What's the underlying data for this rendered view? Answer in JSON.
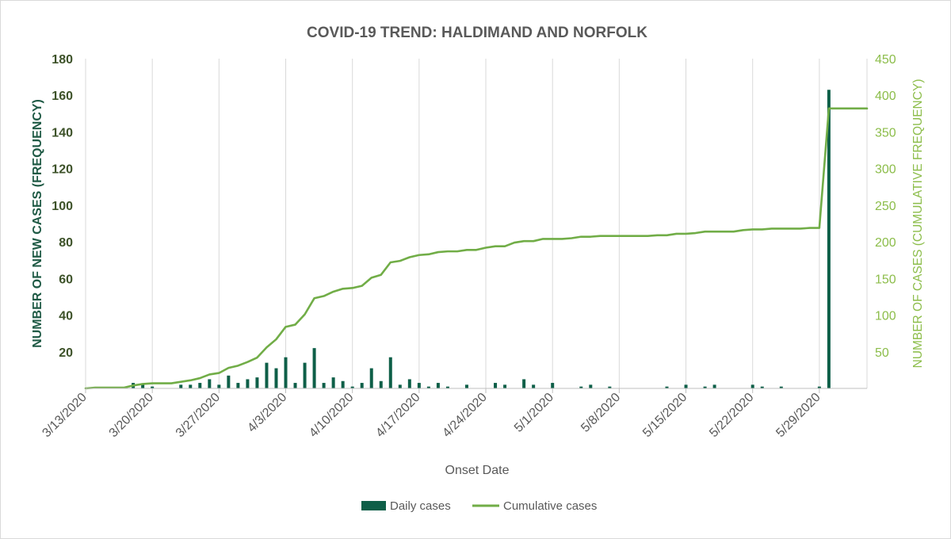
{
  "chart_data": {
    "type": "bar+line",
    "title": "COVID-19 TREND: HALDIMAND AND NORFOLK",
    "xlabel": "Onset Date",
    "ylabel_left": "NUMBER OF NEW CASES (FREQUENCY)",
    "ylabel_right": "NUMBER OF CASES (CUMULATIVE FREQUENCY)",
    "x_start_date": "2020-03-13",
    "x_end_date": "2020-06-03",
    "x_tick_labels": [
      "3/13/2020",
      "3/20/2020",
      "3/27/2020",
      "4/3/2020",
      "4/10/2020",
      "4/17/2020",
      "4/24/2020",
      "5/1/2020",
      "5/8/2020",
      "5/15/2020",
      "5/22/2020",
      "5/29/2020"
    ],
    "x_tick_dates": [
      "2020-03-13",
      "2020-03-20",
      "2020-03-27",
      "2020-04-03",
      "2020-04-10",
      "2020-04-17",
      "2020-04-24",
      "2020-05-01",
      "2020-05-08",
      "2020-05-15",
      "2020-05-22",
      "2020-05-29"
    ],
    "ylim_left": [
      0,
      180
    ],
    "yticks_left": [
      20,
      40,
      60,
      80,
      100,
      120,
      140,
      160,
      180
    ],
    "ylim_right": [
      0,
      450
    ],
    "yticks_right": [
      50,
      100,
      150,
      200,
      250,
      300,
      350,
      400,
      450
    ],
    "grid": "vertical at date ticks",
    "legend_position": "bottom",
    "colors": {
      "daily": "#0e5f48",
      "cumulative": "#71ad47"
    },
    "series": [
      {
        "name": "Daily cases",
        "axis": "left",
        "type": "bar",
        "points": [
          {
            "date": "2020-03-18",
            "value": 3
          },
          {
            "date": "2020-03-19",
            "value": 2
          },
          {
            "date": "2020-03-20",
            "value": 1
          },
          {
            "date": "2020-03-23",
            "value": 2
          },
          {
            "date": "2020-03-24",
            "value": 2
          },
          {
            "date": "2020-03-25",
            "value": 3
          },
          {
            "date": "2020-03-26",
            "value": 5
          },
          {
            "date": "2020-03-27",
            "value": 2
          },
          {
            "date": "2020-03-28",
            "value": 7
          },
          {
            "date": "2020-03-29",
            "value": 3
          },
          {
            "date": "2020-03-30",
            "value": 5
          },
          {
            "date": "2020-03-31",
            "value": 6
          },
          {
            "date": "2020-04-01",
            "value": 14
          },
          {
            "date": "2020-04-02",
            "value": 11
          },
          {
            "date": "2020-04-03",
            "value": 17
          },
          {
            "date": "2020-04-04",
            "value": 3
          },
          {
            "date": "2020-04-05",
            "value": 14
          },
          {
            "date": "2020-04-06",
            "value": 22
          },
          {
            "date": "2020-04-07",
            "value": 3
          },
          {
            "date": "2020-04-08",
            "value": 6
          },
          {
            "date": "2020-04-09",
            "value": 4
          },
          {
            "date": "2020-04-10",
            "value": 1
          },
          {
            "date": "2020-04-11",
            "value": 3
          },
          {
            "date": "2020-04-12",
            "value": 11
          },
          {
            "date": "2020-04-13",
            "value": 4
          },
          {
            "date": "2020-04-14",
            "value": 17
          },
          {
            "date": "2020-04-15",
            "value": 2
          },
          {
            "date": "2020-04-16",
            "value": 5
          },
          {
            "date": "2020-04-17",
            "value": 3
          },
          {
            "date": "2020-04-18",
            "value": 1
          },
          {
            "date": "2020-04-19",
            "value": 3
          },
          {
            "date": "2020-04-20",
            "value": 1
          },
          {
            "date": "2020-04-22",
            "value": 2
          },
          {
            "date": "2020-04-25",
            "value": 3
          },
          {
            "date": "2020-04-26",
            "value": 2
          },
          {
            "date": "2020-04-28",
            "value": 5
          },
          {
            "date": "2020-04-29",
            "value": 2
          },
          {
            "date": "2020-05-01",
            "value": 3
          },
          {
            "date": "2020-05-04",
            "value": 1
          },
          {
            "date": "2020-05-05",
            "value": 2
          },
          {
            "date": "2020-05-07",
            "value": 1
          },
          {
            "date": "2020-05-13",
            "value": 1
          },
          {
            "date": "2020-05-15",
            "value": 2
          },
          {
            "date": "2020-05-17",
            "value": 1
          },
          {
            "date": "2020-05-18",
            "value": 2
          },
          {
            "date": "2020-05-22",
            "value": 2
          },
          {
            "date": "2020-05-23",
            "value": 1
          },
          {
            "date": "2020-05-25",
            "value": 1
          },
          {
            "date": "2020-05-29",
            "value": 1
          },
          {
            "date": "2020-05-30",
            "value": 163
          }
        ]
      },
      {
        "name": "Cumulative cases",
        "axis": "right",
        "type": "line",
        "points": [
          {
            "date": "2020-03-13",
            "value": 0
          },
          {
            "date": "2020-03-14",
            "value": 1
          },
          {
            "date": "2020-03-15",
            "value": 1
          },
          {
            "date": "2020-03-16",
            "value": 1
          },
          {
            "date": "2020-03-17",
            "value": 1
          },
          {
            "date": "2020-03-18",
            "value": 4
          },
          {
            "date": "2020-03-19",
            "value": 6
          },
          {
            "date": "2020-03-20",
            "value": 7
          },
          {
            "date": "2020-03-21",
            "value": 7
          },
          {
            "date": "2020-03-22",
            "value": 7
          },
          {
            "date": "2020-03-23",
            "value": 9
          },
          {
            "date": "2020-03-24",
            "value": 11
          },
          {
            "date": "2020-03-25",
            "value": 14
          },
          {
            "date": "2020-03-26",
            "value": 19
          },
          {
            "date": "2020-03-27",
            "value": 21
          },
          {
            "date": "2020-03-28",
            "value": 28
          },
          {
            "date": "2020-03-29",
            "value": 31
          },
          {
            "date": "2020-03-30",
            "value": 36
          },
          {
            "date": "2020-03-31",
            "value": 42
          },
          {
            "date": "2020-04-01",
            "value": 56
          },
          {
            "date": "2020-04-02",
            "value": 67
          },
          {
            "date": "2020-04-03",
            "value": 84
          },
          {
            "date": "2020-04-04",
            "value": 87
          },
          {
            "date": "2020-04-05",
            "value": 101
          },
          {
            "date": "2020-04-06",
            "value": 123
          },
          {
            "date": "2020-04-07",
            "value": 126
          },
          {
            "date": "2020-04-08",
            "value": 132
          },
          {
            "date": "2020-04-09",
            "value": 136
          },
          {
            "date": "2020-04-10",
            "value": 137
          },
          {
            "date": "2020-04-11",
            "value": 140
          },
          {
            "date": "2020-04-12",
            "value": 151
          },
          {
            "date": "2020-04-13",
            "value": 155
          },
          {
            "date": "2020-04-14",
            "value": 172
          },
          {
            "date": "2020-04-15",
            "value": 174
          },
          {
            "date": "2020-04-16",
            "value": 179
          },
          {
            "date": "2020-04-17",
            "value": 182
          },
          {
            "date": "2020-04-18",
            "value": 183
          },
          {
            "date": "2020-04-19",
            "value": 186
          },
          {
            "date": "2020-04-20",
            "value": 187
          },
          {
            "date": "2020-04-21",
            "value": 187
          },
          {
            "date": "2020-04-22",
            "value": 189
          },
          {
            "date": "2020-04-23",
            "value": 189
          },
          {
            "date": "2020-04-24",
            "value": 192
          },
          {
            "date": "2020-04-25",
            "value": 194
          },
          {
            "date": "2020-04-26",
            "value": 194
          },
          {
            "date": "2020-04-27",
            "value": 199
          },
          {
            "date": "2020-04-28",
            "value": 201
          },
          {
            "date": "2020-04-29",
            "value": 201
          },
          {
            "date": "2020-04-30",
            "value": 204
          },
          {
            "date": "2020-05-01",
            "value": 204
          },
          {
            "date": "2020-05-02",
            "value": 204
          },
          {
            "date": "2020-05-03",
            "value": 205
          },
          {
            "date": "2020-05-04",
            "value": 207
          },
          {
            "date": "2020-05-05",
            "value": 207
          },
          {
            "date": "2020-05-06",
            "value": 208
          },
          {
            "date": "2020-05-07",
            "value": 208
          },
          {
            "date": "2020-05-08",
            "value": 208
          },
          {
            "date": "2020-05-09",
            "value": 208
          },
          {
            "date": "2020-05-10",
            "value": 208
          },
          {
            "date": "2020-05-11",
            "value": 208
          },
          {
            "date": "2020-05-12",
            "value": 209
          },
          {
            "date": "2020-05-13",
            "value": 209
          },
          {
            "date": "2020-05-14",
            "value": 211
          },
          {
            "date": "2020-05-15",
            "value": 211
          },
          {
            "date": "2020-05-16",
            "value": 212
          },
          {
            "date": "2020-05-17",
            "value": 214
          },
          {
            "date": "2020-05-18",
            "value": 214
          },
          {
            "date": "2020-05-19",
            "value": 214
          },
          {
            "date": "2020-05-20",
            "value": 214
          },
          {
            "date": "2020-05-21",
            "value": 216
          },
          {
            "date": "2020-05-22",
            "value": 217
          },
          {
            "date": "2020-05-23",
            "value": 217
          },
          {
            "date": "2020-05-24",
            "value": 218
          },
          {
            "date": "2020-05-25",
            "value": 218
          },
          {
            "date": "2020-05-26",
            "value": 218
          },
          {
            "date": "2020-05-27",
            "value": 218
          },
          {
            "date": "2020-05-28",
            "value": 219
          },
          {
            "date": "2020-05-29",
            "value": 219
          },
          {
            "date": "2020-05-30",
            "value": 382
          },
          {
            "date": "2020-05-31",
            "value": 382
          },
          {
            "date": "2020-06-01",
            "value": 382
          },
          {
            "date": "2020-06-02",
            "value": 382
          },
          {
            "date": "2020-06-03",
            "value": 382
          }
        ]
      }
    ]
  },
  "legend": {
    "daily_label": "Daily cases",
    "cumulative_label": "Cumulative cases"
  }
}
